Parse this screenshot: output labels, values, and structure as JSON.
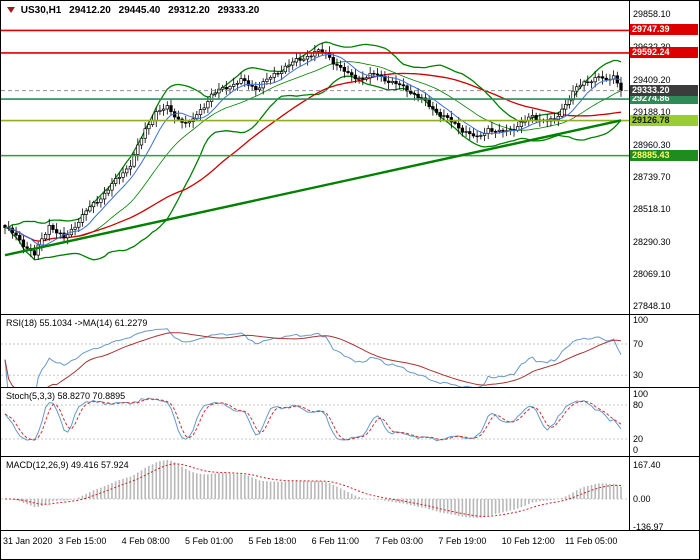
{
  "window": {
    "bg": "#ffffff",
    "border": "#000000"
  },
  "header": {
    "symbol": "US30,H1",
    "open": "29412.20",
    "high": "29445.40",
    "low": "29312.20",
    "close": "29333.20"
  },
  "chart_data": {
    "type": "candlestick",
    "title": "US30,H1",
    "symbol": "US30",
    "timeframe": "H1",
    "bars": 168,
    "price_axis": {
      "ylim": [
        27795,
        29950
      ],
      "ticks": [
        29858.1,
        29632.3,
        29409.2,
        29188.1,
        28960.3,
        28739.7,
        28518.1,
        28290.3,
        28069.1,
        27848.1
      ]
    },
    "close_anchors": [
      [
        0,
        28390
      ],
      [
        3,
        28330
      ],
      [
        8,
        28200
      ],
      [
        12,
        28410
      ],
      [
        16,
        28310
      ],
      [
        20,
        28440
      ],
      [
        22,
        28500
      ],
      [
        26,
        28600
      ],
      [
        30,
        28710
      ],
      [
        34,
        28830
      ],
      [
        38,
        29060
      ],
      [
        41,
        29190
      ],
      [
        44,
        29210
      ],
      [
        47,
        29140
      ],
      [
        50,
        29100
      ],
      [
        53,
        29200
      ],
      [
        56,
        29300
      ],
      [
        60,
        29360
      ],
      [
        64,
        29400
      ],
      [
        68,
        29350
      ],
      [
        72,
        29420
      ],
      [
        76,
        29500
      ],
      [
        80,
        29545
      ],
      [
        84,
        29600
      ],
      [
        87,
        29590
      ],
      [
        90,
        29510
      ],
      [
        93,
        29440
      ],
      [
        97,
        29420
      ],
      [
        101,
        29445
      ],
      [
        105,
        29385
      ],
      [
        109,
        29345
      ],
      [
        113,
        29270
      ],
      [
        117,
        29190
      ],
      [
        121,
        29115
      ],
      [
        125,
        29050
      ],
      [
        128,
        29000
      ],
      [
        131,
        29075
      ],
      [
        134,
        29040
      ],
      [
        137,
        29065
      ],
      [
        140,
        29105
      ],
      [
        143,
        29155
      ],
      [
        146,
        29130
      ],
      [
        149,
        29120
      ],
      [
        152,
        29250
      ],
      [
        155,
        29350
      ],
      [
        158,
        29400
      ],
      [
        161,
        29430
      ],
      [
        163,
        29390
      ],
      [
        165,
        29445
      ],
      [
        167,
        29333.2
      ]
    ],
    "noise": [
      12,
      9
    ],
    "wick_base": 10,
    "wick_var": 35,
    "candle_colors": {
      "up_fill": "#ffffff",
      "down_fill": "#000000",
      "outline": "#000000"
    },
    "levels": [
      {
        "value": 29747.39,
        "label": "29747.39",
        "color": "#dd0000",
        "badge_bg": "#dd0000",
        "badge_fg": "#ffffff"
      },
      {
        "value": 29592.24,
        "label": "29592.24",
        "color": "#dd0000",
        "badge_bg": "#dd0000",
        "badge_fg": "#ffffff"
      },
      {
        "value": 29274.86,
        "label": "29274.86",
        "color": "#2e8b57",
        "badge_bg": "#2e8b57",
        "badge_fg": "#ffffff"
      },
      {
        "value": 29126.78,
        "label": "29126.78",
        "color": "#8faf20",
        "badge_bg": "#9acd32",
        "badge_fg": "#1a1a1a"
      },
      {
        "value": 28885.43,
        "label": "28885.43",
        "color": "#22aa22",
        "badge_bg": "#1e8c1e",
        "badge_fg": "#ffff66"
      }
    ],
    "current_price": {
      "value": 29333.2,
      "label": "29333.20",
      "badge_bg": "#3c3c3c",
      "badge_fg": "#ffffff",
      "line_color": "#909090"
    },
    "trendlines": [
      {
        "from_bar": 0,
        "from_price": 28200,
        "to_bar": 167,
        "to_price": 29128,
        "color": "#008000",
        "width": 2.4
      }
    ],
    "overlays": {
      "bollinger": {
        "period": 20,
        "deviation": 2,
        "color": "#008000"
      },
      "ma_fast": {
        "period": 8,
        "color": "#3a6fd8"
      },
      "ma_slow": {
        "period": 50,
        "color": "#cc0000"
      }
    },
    "panels": [
      {
        "id": "rsi",
        "label": "RSI(18) 55.1034 ->MA(14) 61.2279",
        "params": {
          "period": 18,
          "ma": 14
        },
        "ylim": [
          15,
          107
        ],
        "ticks": [
          100,
          70,
          30
        ],
        "grid": [
          70,
          30
        ],
        "line_color": "#6699cc",
        "signal_color": "#aa3333"
      },
      {
        "id": "stoch",
        "label": "Stoch(5,3,3) 58.8270 70.8895",
        "params": {
          "k": 5,
          "slow": 3,
          "d": 3
        },
        "ylim": [
          -10,
          110
        ],
        "ticks": [
          100,
          80,
          20,
          0
        ],
        "grid": [
          80,
          20
        ],
        "line_color": "#6699cc",
        "signal_color": "#cc3333"
      },
      {
        "id": "macd",
        "label": "MACD(12,26,9) 49.416 57.924",
        "params": {
          "fast": 12,
          "slow": 26,
          "signal": 9
        },
        "ylim": [
          -153,
          207
        ],
        "ticks": [
          {
            "v": 167.4,
            "label": "167.40"
          },
          {
            "v": 0,
            "label": "0.00"
          },
          {
            "v": -136.97,
            "label": "-136.97"
          }
        ],
        "grid": [
          0
        ],
        "hist_color": "#b8b8b8",
        "signal_color": "#cc2222"
      }
    ],
    "time_axis": {
      "labels": [
        "31 Jan 2020",
        "3 Feb 15:00",
        "4 Feb 08:00",
        "5 Feb 01:00",
        "5 Feb 18:00",
        "6 Feb 11:00",
        "7 Feb 03:00",
        "7 Feb 19:00",
        "10 Feb 12:00",
        "11 Feb 05:00"
      ]
    }
  }
}
